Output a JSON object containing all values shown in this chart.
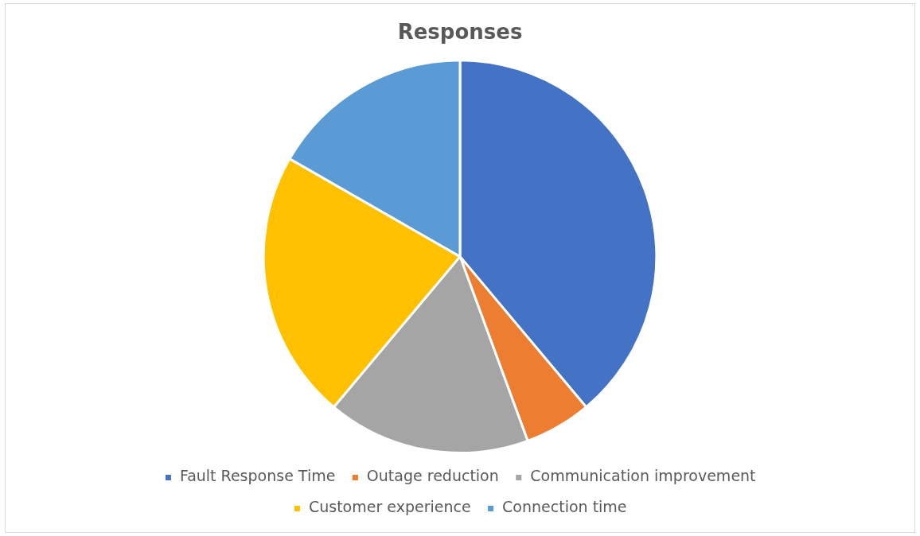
{
  "chart_data": {
    "type": "pie",
    "title": "Responses",
    "categories": [
      "Fault Response Time",
      "Outage reduction",
      "Communication improvement",
      "Customer experience",
      "Connection time"
    ],
    "values": [
      38.9,
      5.5,
      16.7,
      22.2,
      16.7
    ],
    "colors": [
      "#4472c4",
      "#ed7d31",
      "#a5a5a5",
      "#ffc000",
      "#5b9bd5"
    ],
    "legend": "bottom"
  }
}
